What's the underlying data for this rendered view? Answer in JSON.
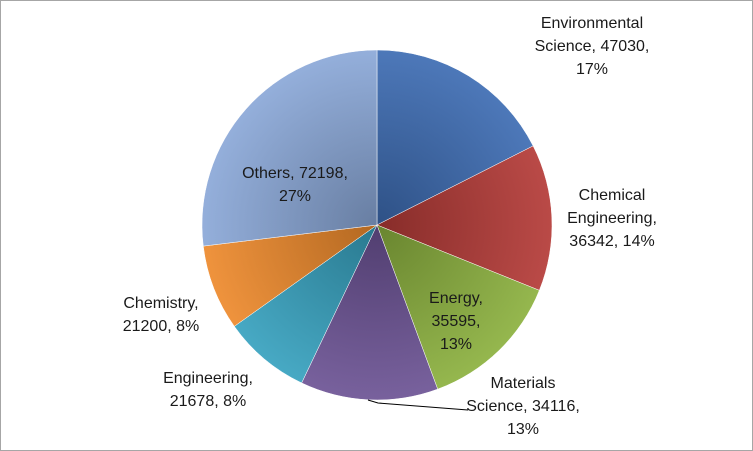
{
  "chart_data": {
    "type": "pie",
    "title": "",
    "start": "12 o'clock, clockwise",
    "slices": [
      {
        "name": "Environmental Science",
        "value": 47030,
        "percent": "17%",
        "color": "#3d6cb3"
      },
      {
        "name": "Chemical Engineering",
        "value": 36342,
        "percent": "14%",
        "color": "#b43a37"
      },
      {
        "name": "Energy",
        "value": 35595,
        "percent": "13%",
        "color": "#8cb13f"
      },
      {
        "name": "Materials Science",
        "value": 34116,
        "percent": "13%",
        "color": "#6c5395"
      },
      {
        "name": "Engineering",
        "value": 21678,
        "percent": "8%",
        "color": "#37a1bf"
      },
      {
        "name": "Chemistry",
        "value": 21200,
        "percent": "8%",
        "color": "#ee8a2c"
      },
      {
        "name": "Others",
        "value": 72198,
        "percent": "27%",
        "color": "#8ba8d8"
      }
    ],
    "legend": "none",
    "data_labels": "category, value, percentage"
  }
}
